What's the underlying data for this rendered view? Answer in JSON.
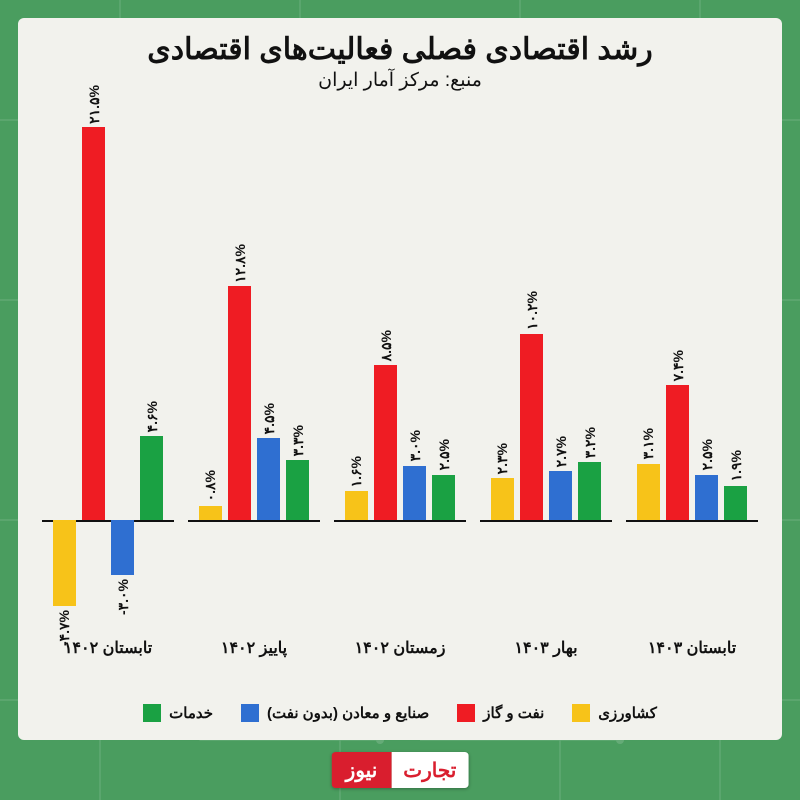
{
  "title": "رشد اقتصادی فصلی فعالیت‌های اقتصادی",
  "subtitle": "منبع: مرکز آمار ایران",
  "chart": {
    "type": "bar",
    "y_domain": [
      -6,
      23
    ],
    "baseline": 0,
    "bar_width_pct": 18,
    "bar_gap_pct": 4,
    "label_fontsize": 14,
    "title_fontsize": 30,
    "subtitle_fontsize": 19,
    "category_fontsize": 16,
    "legend_fontsize": 15,
    "background_color": "#f2f2ed",
    "page_background": "#4a9d5f",
    "axis_color": "#111111",
    "series": [
      {
        "key": "services",
        "label": "خدمات",
        "color": "#1aa143"
      },
      {
        "key": "industry",
        "label": "صنایع و معادن (بدون نفت)",
        "color": "#2f6fd1"
      },
      {
        "key": "oilgas",
        "label": "نفت و گاز",
        "color": "#ef1c23"
      },
      {
        "key": "agri",
        "label": "کشاورزی",
        "color": "#f7c319"
      }
    ],
    "categories": [
      {
        "label": "تابستان ۱۴۰۲",
        "values": {
          "services": 4.6,
          "industry": -3.0,
          "oilgas": 21.5,
          "agri": -4.7
        },
        "display": {
          "services": "۴.۶%",
          "industry": "-۳.۰%",
          "oilgas": "۲۱.۵%",
          "agri": "-۴.۷%"
        }
      },
      {
        "label": "پاییز ۱۴۰۲",
        "values": {
          "services": 3.3,
          "industry": 4.5,
          "oilgas": 12.8,
          "agri": 0.8
        },
        "display": {
          "services": "۳.۳%",
          "industry": "۴.۵%",
          "oilgas": "۱۲.۸%",
          "agri": "۰.۸%"
        }
      },
      {
        "label": "زمستان ۱۴۰۲",
        "values": {
          "services": 2.5,
          "industry": 3.0,
          "oilgas": 8.5,
          "agri": 1.6
        },
        "display": {
          "services": "۲.۵%",
          "industry": "۳.۰%",
          "oilgas": "۸.۵%",
          "agri": "۱.۶%"
        }
      },
      {
        "label": "بهار ۱۴۰۳",
        "values": {
          "services": 3.2,
          "industry": 2.7,
          "oilgas": 10.2,
          "agri": 2.3
        },
        "display": {
          "services": "۳.۲%",
          "industry": "۲.۷%",
          "oilgas": "۱۰.۲%",
          "agri": "۲.۳%"
        }
      },
      {
        "label": "تابستان ۱۴۰۳",
        "values": {
          "services": 1.9,
          "industry": 2.5,
          "oilgas": 7.4,
          "agri": 3.1
        },
        "display": {
          "services": "۱.۹%",
          "industry": "۲.۵%",
          "oilgas": "۷.۴%",
          "agri": "۳.۱%"
        }
      }
    ]
  },
  "logo": {
    "part_a": "تجارت",
    "part_b": "نیوز"
  }
}
